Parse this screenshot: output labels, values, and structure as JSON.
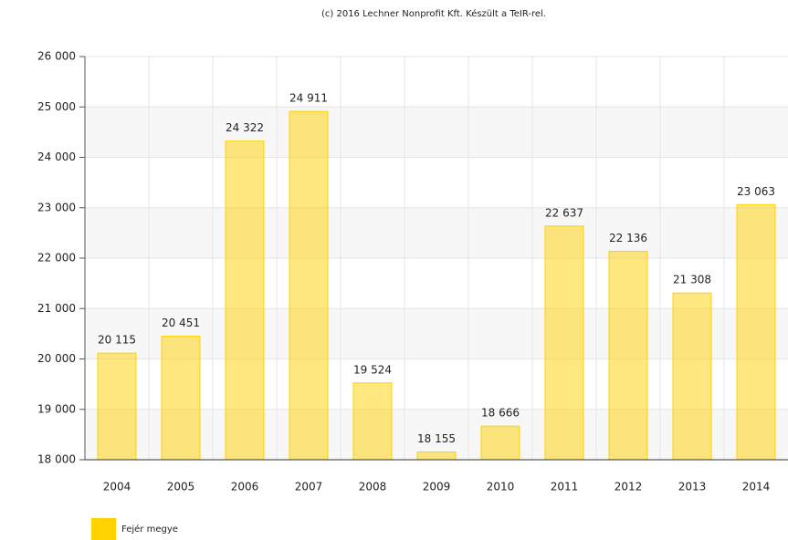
{
  "chart_data": {
    "type": "bar",
    "title": "(c) 2016 Lechner Nonprofit Kft. Készült a TeIR-rel.",
    "categories": [
      "2004",
      "2005",
      "2006",
      "2007",
      "2008",
      "2009",
      "2010",
      "2011",
      "2012",
      "2013",
      "2014"
    ],
    "series": [
      {
        "name": "Fejér megye",
        "color": "#ffd200",
        "values": [
          20115,
          20451,
          24322,
          24911,
          19524,
          18155,
          18666,
          22637,
          22136,
          21308,
          23063
        ],
        "value_labels": [
          "20 115",
          "20 451",
          "24 322",
          "24 911",
          "19 524",
          "18 155",
          "18 666",
          "22 637",
          "22 136",
          "21 308",
          "23 063"
        ]
      }
    ],
    "ylim": [
      18000,
      26000
    ],
    "yticks": [
      {
        "value": 18000,
        "label": "18 000"
      },
      {
        "value": 19000,
        "label": "19 000"
      },
      {
        "value": 20000,
        "label": "20 000"
      },
      {
        "value": 21000,
        "label": "21 000"
      },
      {
        "value": 22000,
        "label": "22 000"
      },
      {
        "value": 23000,
        "label": "23 000"
      },
      {
        "value": 24000,
        "label": "24 000"
      },
      {
        "value": 25000,
        "label": "25 000"
      },
      {
        "value": 26000,
        "label": "26 000"
      }
    ],
    "grid": true
  }
}
